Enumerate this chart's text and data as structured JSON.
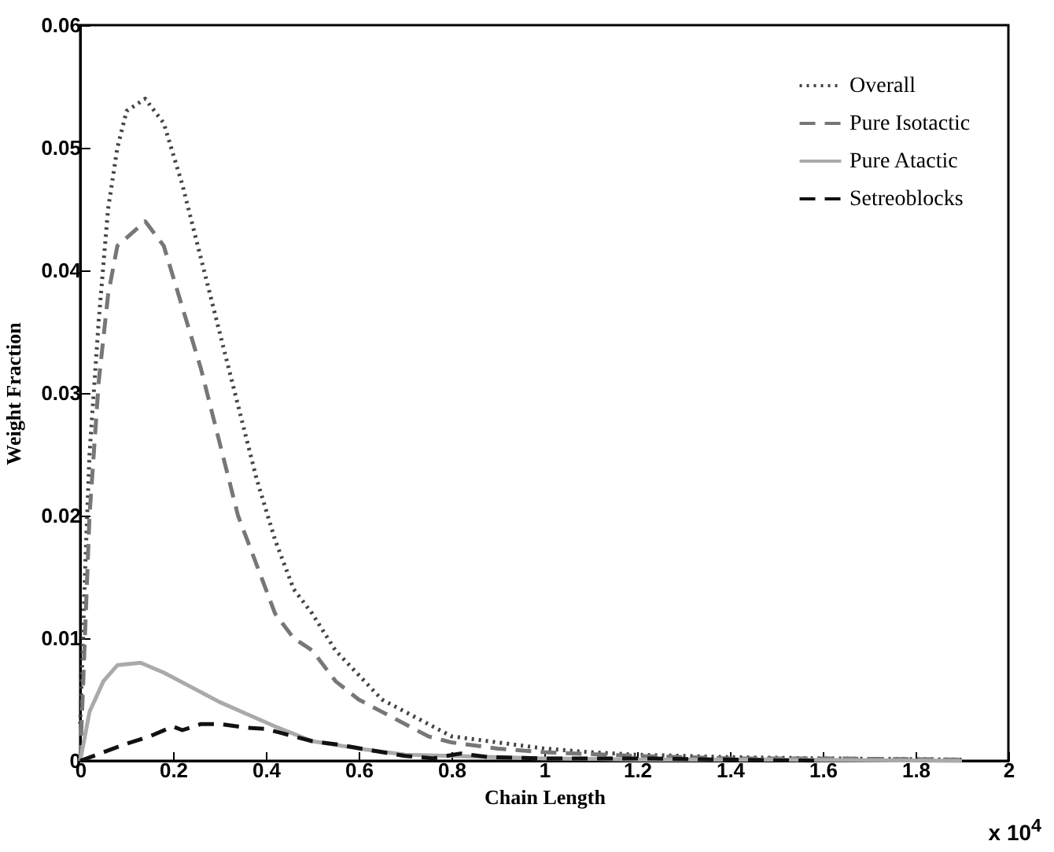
{
  "chart_data": {
    "type": "line",
    "xlabel": "Chain Length",
    "ylabel": "Weight Fraction",
    "annotations": [
      "x 10$^{4}$"
    ],
    "xlim": [
      0,
      2
    ],
    "xticks": [
      0,
      0.2,
      0.4,
      0.6,
      0.8,
      1,
      1.2,
      1.4,
      1.6,
      1.8,
      2
    ],
    "ylim": [
      0,
      0.06
    ],
    "yticks": [
      0,
      0.01,
      0.02,
      0.03,
      0.04,
      0.05,
      0.06
    ],
    "legend": "top right",
    "marker": "none",
    "series": [
      {
        "name": "Overall",
        "color": "#444444",
        "line_style": "dotted",
        "x": [
          0,
          0.01,
          0.02,
          0.04,
          0.06,
          0.08,
          0.1,
          0.14,
          0.18,
          0.22,
          0.26,
          0.3,
          0.34,
          0.38,
          0.42,
          0.46,
          0.5,
          0.55,
          0.6,
          0.65,
          0.7,
          0.75,
          0.8,
          0.9,
          1.0,
          1.1,
          1.2,
          1.4,
          1.6,
          1.9
        ],
        "values": [
          0.003,
          0.015,
          0.025,
          0.036,
          0.045,
          0.05,
          0.053,
          0.054,
          0.052,
          0.047,
          0.041,
          0.035,
          0.029,
          0.023,
          0.018,
          0.014,
          0.012,
          0.009,
          0.007,
          0.005,
          0.004,
          0.003,
          0.002,
          0.0015,
          0.001,
          0.0007,
          0.0005,
          0.0003,
          0.0002,
          0.0001
        ]
      },
      {
        "name": "Pure Isotactic",
        "color": "#777777",
        "line_style": "dashed",
        "x": [
          0,
          0.01,
          0.02,
          0.04,
          0.06,
          0.08,
          0.14,
          0.18,
          0.22,
          0.26,
          0.3,
          0.34,
          0.38,
          0.42,
          0.46,
          0.5,
          0.55,
          0.6,
          0.65,
          0.7,
          0.75,
          0.8,
          0.9,
          1.0,
          1.2,
          1.4,
          1.6,
          1.9
        ],
        "values": [
          0,
          0.01,
          0.02,
          0.031,
          0.038,
          0.042,
          0.044,
          0.042,
          0.037,
          0.032,
          0.026,
          0.02,
          0.016,
          0.012,
          0.01,
          0.009,
          0.0065,
          0.005,
          0.004,
          0.003,
          0.002,
          0.0015,
          0.001,
          0.0007,
          0.0004,
          0.0002,
          0.0002,
          0.0001
        ]
      },
      {
        "name": "Pure Atactic",
        "color": "#aaaaaa",
        "line_style": "solid",
        "x": [
          0,
          0.02,
          0.05,
          0.08,
          0.13,
          0.18,
          0.24,
          0.3,
          0.36,
          0.42,
          0.5,
          0.6,
          0.7,
          0.8,
          1.0,
          1.2,
          1.5,
          1.9
        ],
        "values": [
          0,
          0.004,
          0.0065,
          0.0078,
          0.008,
          0.0072,
          0.006,
          0.0048,
          0.0038,
          0.0028,
          0.0016,
          0.001,
          0.0005,
          0.0004,
          0.0002,
          0.0001,
          0.0001,
          0
        ]
      },
      {
        "name": "Setreoblocks",
        "color": "#111111",
        "line_style": "dashed",
        "x": [
          0,
          0.05,
          0.1,
          0.15,
          0.2,
          0.22,
          0.26,
          0.3,
          0.36,
          0.4,
          0.44,
          0.5,
          0.56,
          0.62,
          0.7,
          0.76,
          0.82,
          0.88,
          1.0,
          1.2,
          1.4,
          1.6
        ],
        "values": [
          0,
          0.0007,
          0.0014,
          0.002,
          0.0028,
          0.0025,
          0.003,
          0.003,
          0.0027,
          0.0026,
          0.0022,
          0.0016,
          0.0013,
          0.0009,
          0.0004,
          0.0002,
          0.0006,
          0.0003,
          0.0002,
          0.0002,
          0.0001,
          0
        ]
      }
    ]
  }
}
